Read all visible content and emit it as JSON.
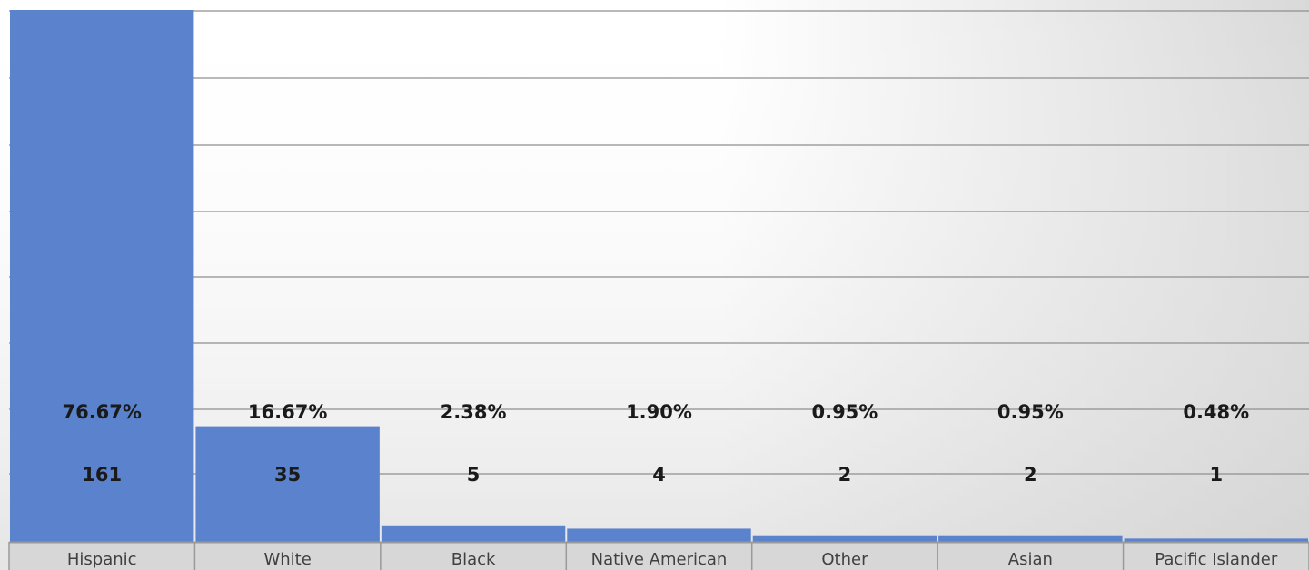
{
  "chart_data": {
    "type": "bar",
    "categories": [
      "Hispanic",
      "White",
      "Black",
      "Native American",
      "Other",
      "Asian",
      "Pacific Islander"
    ],
    "values": [
      161,
      35,
      5,
      4,
      2,
      2,
      1
    ],
    "percent_labels": [
      "76.67%",
      "16.67%",
      "2.38%",
      "1.90%",
      "0.95%",
      "0.95%",
      "0.48%"
    ],
    "count_labels": [
      "161",
      "35",
      "5",
      "4",
      "2",
      "2",
      "1"
    ],
    "title": "",
    "xlabel": "",
    "ylabel": "",
    "ylim": [
      0,
      165
    ],
    "grid": true,
    "legend": "none"
  },
  "colors": {
    "bar": "#5b82cc",
    "gridline": "#8f8f8f",
    "axis_band": "#d7d7d7"
  }
}
